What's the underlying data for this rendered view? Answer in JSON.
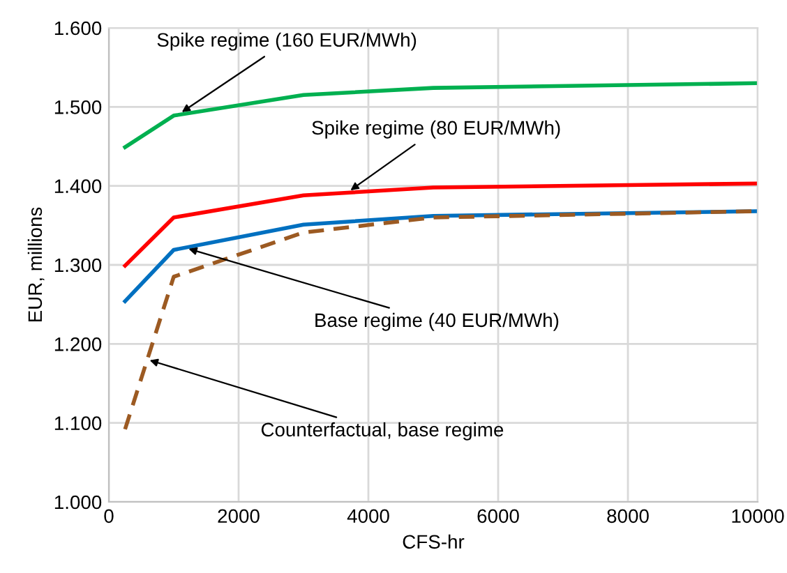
{
  "chart_data": {
    "type": "line",
    "xlabel": "CFS-hr",
    "ylabel": "EUR, millions",
    "x": [
      250,
      1000,
      3000,
      5000,
      10000
    ],
    "series": [
      {
        "color": "#00b050",
        "values": [
          1.449,
          1.489,
          1.515,
          1.524,
          1.53
        ]
      },
      {
        "color": "#ff0000",
        "values": [
          1.299,
          1.36,
          1.388,
          1.398,
          1.403
        ]
      },
      {
        "color": "#0070c0",
        "values": [
          1.254,
          1.319,
          1.351,
          1.362,
          1.368
        ]
      },
      {
        "color": "#9c5a22",
        "line_style": "dashed",
        "values": [
          1.092,
          1.285,
          1.341,
          1.36,
          1.368
        ]
      }
    ],
    "annotations": [
      {
        "text": "Spike regime (160 EUR/MWh)",
        "x": 1100,
        "y": 1.492
      },
      {
        "text": "Spike regime (80 EUR/MWh)",
        "x": 3700,
        "y": 1.393
      },
      {
        "text": "Base regime (40 EUR/MWh)",
        "x": 1200,
        "y": 1.321
      },
      {
        "text": "Counterfactual, base regime",
        "x": 600,
        "y": 1.18
      }
    ],
    "xlim": [
      0,
      10000
    ],
    "xticks": [
      0,
      2000,
      4000,
      6000,
      8000,
      10000
    ],
    "ylim": [
      1.0,
      1.6
    ],
    "yticks": [
      {
        "value": 1.0,
        "label": "1.000"
      },
      {
        "value": 1.1,
        "label": "1.100"
      },
      {
        "value": 1.2,
        "label": "1.200"
      },
      {
        "value": 1.3,
        "label": "1.300"
      },
      {
        "value": 1.4,
        "label": "1.400"
      },
      {
        "value": 1.5,
        "label": "1.500"
      },
      {
        "value": 1.6,
        "label": "1.600"
      }
    ],
    "grid": true,
    "marker": "none"
  }
}
